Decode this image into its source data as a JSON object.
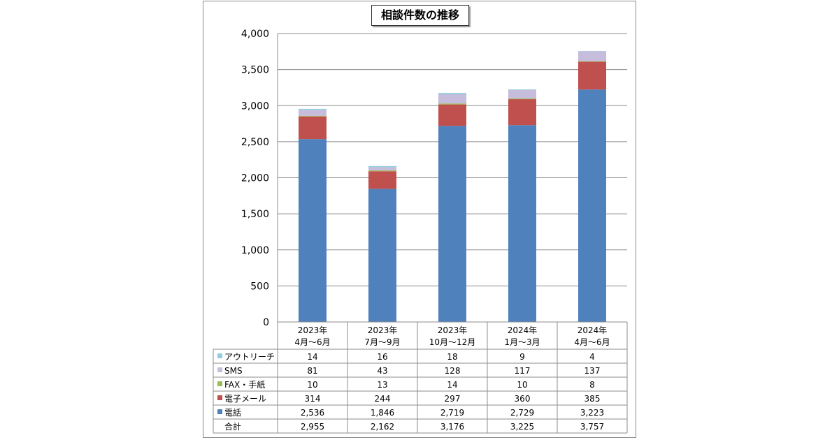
{
  "chart_data": {
    "type": "bar",
    "stacked": true,
    "title": "相談件数の推移",
    "categories": [
      [
        "2023年",
        "4月～6月"
      ],
      [
        "2023年",
        "7月～9月"
      ],
      [
        "2023年",
        "10月～12月"
      ],
      [
        "2024年",
        "1月～3月"
      ],
      [
        "2024年",
        "4月～6月"
      ]
    ],
    "ylim": [
      0,
      4000
    ],
    "yticks": [
      "0",
      "500",
      "1,000",
      "1,500",
      "2,000",
      "2,500",
      "3,000",
      "3,500",
      "4,000"
    ],
    "grid": true,
    "series": [
      {
        "name": "電話",
        "color": "#4f81bd",
        "values": [
          2536,
          1846,
          2719,
          2729,
          3223
        ],
        "labels": [
          "2,536",
          "1,846",
          "2,719",
          "2,729",
          "3,223"
        ]
      },
      {
        "name": "電子メール",
        "color": "#c0504d",
        "values": [
          314,
          244,
          297,
          360,
          385
        ],
        "labels": [
          "314",
          "244",
          "297",
          "360",
          "385"
        ]
      },
      {
        "name": "FAX・手紙",
        "color": "#9bbb59",
        "values": [
          10,
          13,
          14,
          10,
          8
        ],
        "labels": [
          "10",
          "13",
          "14",
          "10",
          "8"
        ]
      },
      {
        "name": "SMS",
        "color": "#c6bcdc",
        "values": [
          81,
          43,
          128,
          117,
          137
        ],
        "labels": [
          "81",
          "43",
          "128",
          "117",
          "137"
        ]
      },
      {
        "name": "アウトリーチ",
        "color": "#93cddd",
        "values": [
          14,
          16,
          18,
          9,
          4
        ],
        "labels": [
          "14",
          "16",
          "18",
          "9",
          "4"
        ]
      }
    ],
    "table_row_order": [
      "アウトリーチ",
      "SMS",
      "FAX・手紙",
      "電子メール",
      "電話"
    ],
    "totals": {
      "label": "合計",
      "values": [
        "2,955",
        "2,162",
        "3,176",
        "3,225",
        "3,757"
      ]
    }
  }
}
